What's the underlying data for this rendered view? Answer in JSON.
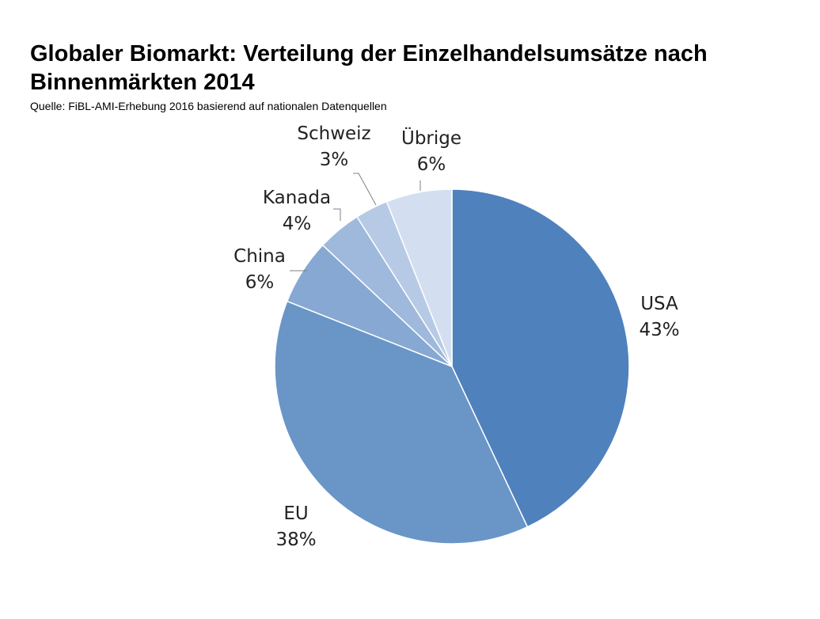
{
  "header": {
    "title": "Globaler Biomarkt: Verteilung der Einzelhandelsumsätze nach Binnenmärkten 2014",
    "source": "Quelle: FiBL-AMI-Erhebung 2016 basierend auf nationalen Datenquellen"
  },
  "chart_data": {
    "type": "pie",
    "title": "Globaler Biomarkt: Verteilung der Einzelhandelsumsätze nach Binnenmärkten 2014",
    "subtitle": "Quelle: FiBL-AMI-Erhebung 2016 basierend auf nationalen Datenquellen",
    "start_angle_deg": 0,
    "direction": "clockwise",
    "legend": "none",
    "slices": [
      {
        "label": "USA",
        "value": 43,
        "display": "43%",
        "color": "#4f81bd"
      },
      {
        "label": "EU",
        "value": 38,
        "display": "38%",
        "color": "#6a95c7"
      },
      {
        "label": "China",
        "value": 6,
        "display": "6%",
        "color": "#86a8d3"
      },
      {
        "label": "Kanada",
        "value": 4,
        "display": "4%",
        "color": "#9eb9dc"
      },
      {
        "label": "Schweiz",
        "value": 3,
        "display": "3%",
        "color": "#b7cae5"
      },
      {
        "label": "Übrige",
        "value": 6,
        "display": "6%",
        "color": "#d3dff0"
      }
    ]
  }
}
